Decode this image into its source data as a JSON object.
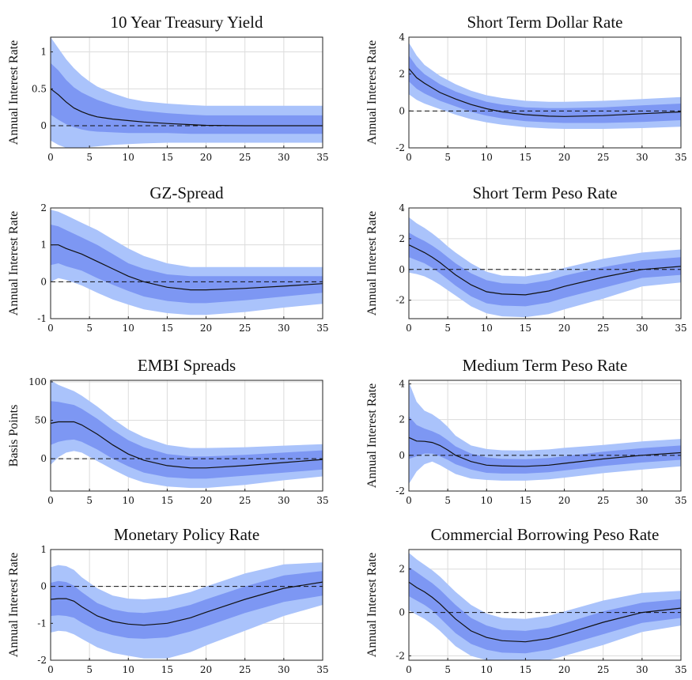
{
  "chart_data": [
    {
      "type": "area",
      "title": "10 Year Treasury Yield",
      "ylabel": "Annual Interest Rate",
      "xlim": [
        0,
        35
      ],
      "ylim": [
        -0.3,
        1.2
      ],
      "xticks": [
        0,
        5,
        10,
        15,
        20,
        25,
        30,
        35
      ],
      "yticks": [
        0,
        0.5,
        1
      ],
      "grid": true,
      "reference_line": 0,
      "x": [
        0,
        1,
        2,
        3,
        4,
        5,
        6,
        8,
        10,
        12,
        15,
        18,
        20,
        25,
        30,
        35
      ],
      "median": [
        0.5,
        0.42,
        0.32,
        0.24,
        0.19,
        0.15,
        0.12,
        0.09,
        0.07,
        0.05,
        0.03,
        0.015,
        0.005,
        0,
        0,
        0
      ],
      "inner_upper": [
        0.85,
        0.75,
        0.62,
        0.52,
        0.45,
        0.4,
        0.35,
        0.28,
        0.23,
        0.2,
        0.17,
        0.15,
        0.14,
        0.14,
        0.14,
        0.14
      ],
      "inner_lower": [
        0.15,
        0.08,
        0.02,
        -0.02,
        -0.05,
        -0.07,
        -0.08,
        -0.09,
        -0.1,
        -0.1,
        -0.1,
        -0.11,
        -0.11,
        -0.11,
        -0.11,
        -0.11
      ],
      "outer_upper": [
        1.2,
        1.05,
        0.9,
        0.78,
        0.68,
        0.6,
        0.53,
        0.44,
        0.37,
        0.33,
        0.3,
        0.28,
        0.27,
        0.27,
        0.27,
        0.27
      ],
      "outer_lower": [
        -0.2,
        -0.26,
        -0.3,
        -0.3,
        -0.3,
        -0.29,
        -0.28,
        -0.26,
        -0.25,
        -0.24,
        -0.23,
        -0.23,
        -0.23,
        -0.23,
        -0.23,
        -0.23
      ]
    },
    {
      "type": "area",
      "title": "Short Term Dollar Rate",
      "ylabel": "Annual Interest Rate",
      "xlim": [
        0,
        35
      ],
      "ylim": [
        -2,
        4
      ],
      "xticks": [
        0,
        5,
        10,
        15,
        20,
        25,
        30,
        35
      ],
      "yticks": [
        -2,
        0,
        2,
        4
      ],
      "grid": true,
      "reference_line": 0,
      "x": [
        0,
        1,
        2,
        4,
        6,
        8,
        10,
        12,
        15,
        18,
        20,
        25,
        30,
        35
      ],
      "median": [
        2.3,
        1.8,
        1.5,
        1.0,
        0.65,
        0.35,
        0.12,
        -0.05,
        -0.2,
        -0.28,
        -0.3,
        -0.25,
        -0.15,
        -0.05
      ],
      "inner_upper": [
        3.0,
        2.4,
        2.0,
        1.45,
        1.05,
        0.75,
        0.5,
        0.35,
        0.2,
        0.15,
        0.15,
        0.2,
        0.3,
        0.4
      ],
      "inner_lower": [
        1.6,
        1.2,
        0.95,
        0.55,
        0.25,
        -0.05,
        -0.25,
        -0.4,
        -0.55,
        -0.62,
        -0.65,
        -0.65,
        -0.6,
        -0.5
      ],
      "outer_upper": [
        3.7,
        3.0,
        2.5,
        1.9,
        1.45,
        1.1,
        0.85,
        0.7,
        0.55,
        0.5,
        0.5,
        0.55,
        0.65,
        0.75
      ],
      "outer_lower": [
        0.9,
        0.6,
        0.4,
        0.1,
        -0.2,
        -0.45,
        -0.62,
        -0.75,
        -0.88,
        -0.95,
        -0.97,
        -0.97,
        -0.93,
        -0.85
      ]
    },
    {
      "type": "area",
      "title": "GZ-Spread",
      "ylabel": "Annual Interest Rate",
      "xlim": [
        0,
        35
      ],
      "ylim": [
        -1,
        2
      ],
      "xticks": [
        0,
        5,
        10,
        15,
        20,
        25,
        30,
        35
      ],
      "yticks": [
        -1,
        0,
        1,
        2
      ],
      "grid": true,
      "reference_line": 0,
      "x": [
        0,
        1,
        2,
        4,
        6,
        8,
        10,
        12,
        15,
        18,
        20,
        25,
        30,
        35
      ],
      "median": [
        1.0,
        1.0,
        0.9,
        0.75,
        0.55,
        0.35,
        0.15,
        0.0,
        -0.15,
        -0.22,
        -0.22,
        -0.18,
        -0.12,
        -0.05
      ],
      "inner_upper": [
        1.55,
        1.5,
        1.4,
        1.2,
        1.0,
        0.75,
        0.5,
        0.35,
        0.2,
        0.15,
        0.15,
        0.15,
        0.15,
        0.15
      ],
      "inner_lower": [
        0.45,
        0.5,
        0.42,
        0.3,
        0.1,
        -0.08,
        -0.25,
        -0.4,
        -0.52,
        -0.58,
        -0.58,
        -0.5,
        -0.4,
        -0.3
      ],
      "outer_upper": [
        1.95,
        1.9,
        1.8,
        1.6,
        1.4,
        1.15,
        0.9,
        0.7,
        0.5,
        0.4,
        0.4,
        0.4,
        0.4,
        0.4
      ],
      "outer_lower": [
        0.0,
        0.1,
        0.05,
        -0.1,
        -0.3,
        -0.48,
        -0.62,
        -0.75,
        -0.85,
        -0.9,
        -0.9,
        -0.82,
        -0.7,
        -0.6
      ]
    },
    {
      "type": "area",
      "title": "Short Term Peso Rate",
      "ylabel": "Annual Interest Rate",
      "xlim": [
        0,
        35
      ],
      "ylim": [
        -3.2,
        4
      ],
      "xticks": [
        0,
        5,
        10,
        15,
        20,
        25,
        30,
        35
      ],
      "yticks": [
        -2,
        0,
        2,
        4
      ],
      "grid": true,
      "reference_line": 0,
      "x": [
        0,
        1,
        2,
        3,
        4,
        5,
        6,
        8,
        10,
        12,
        15,
        18,
        20,
        25,
        30,
        35
      ],
      "median": [
        1.6,
        1.35,
        1.1,
        0.8,
        0.45,
        0.05,
        -0.35,
        -1.0,
        -1.45,
        -1.6,
        -1.65,
        -1.4,
        -1.1,
        -0.5,
        0.0,
        0.2
      ],
      "inner_upper": [
        2.4,
        2.1,
        1.85,
        1.55,
        1.2,
        0.8,
        0.4,
        -0.25,
        -0.7,
        -0.9,
        -0.95,
        -0.7,
        -0.4,
        0.15,
        0.6,
        0.8
      ],
      "inner_lower": [
        0.8,
        0.6,
        0.4,
        0.1,
        -0.25,
        -0.65,
        -1.05,
        -1.75,
        -2.2,
        -2.35,
        -2.4,
        -2.15,
        -1.85,
        -1.2,
        -0.55,
        -0.35
      ],
      "outer_upper": [
        3.4,
        3.0,
        2.7,
        2.35,
        1.95,
        1.5,
        1.1,
        0.4,
        -0.15,
        -0.4,
        -0.45,
        -0.2,
        0.1,
        0.7,
        1.1,
        1.3
      ],
      "outer_lower": [
        -0.2,
        -0.3,
        -0.45,
        -0.7,
        -1.0,
        -1.35,
        -1.7,
        -2.4,
        -2.85,
        -3.05,
        -3.1,
        -2.9,
        -2.6,
        -1.9,
        -1.1,
        -0.85
      ]
    },
    {
      "type": "area",
      "title": "EMBI Spreads",
      "ylabel": "Basis Points",
      "xlim": [
        0,
        35
      ],
      "ylim": [
        -42,
        102
      ],
      "xticks": [
        0,
        5,
        10,
        15,
        20,
        25,
        30,
        35
      ],
      "yticks": [
        0,
        50,
        100
      ],
      "grid": true,
      "reference_line": 0,
      "x": [
        0,
        1,
        2,
        3,
        4,
        6,
        8,
        10,
        12,
        15,
        18,
        20,
        25,
        30,
        35
      ],
      "median": [
        46,
        48,
        48,
        48,
        44,
        32,
        18,
        6,
        -2,
        -9,
        -12,
        -12,
        -9,
        -5,
        -1
      ],
      "inner_upper": [
        75,
        74,
        72,
        70,
        65,
        52,
        37,
        24,
        15,
        6,
        3,
        3,
        5,
        8,
        11
      ],
      "inner_lower": [
        18,
        22,
        24,
        25,
        22,
        12,
        0,
        -10,
        -18,
        -24,
        -26,
        -26,
        -22,
        -18,
        -14
      ],
      "outer_upper": [
        102,
        96,
        92,
        88,
        82,
        68,
        52,
        38,
        28,
        18,
        14,
        14,
        15,
        17,
        19
      ],
      "outer_lower": [
        -8,
        2,
        8,
        10,
        8,
        -3,
        -14,
        -24,
        -31,
        -36,
        -38,
        -38,
        -34,
        -28,
        -23
      ]
    },
    {
      "type": "area",
      "title": "Medium Term Peso Rate",
      "ylabel": "Annual Interest Rate",
      "xlim": [
        0,
        35
      ],
      "ylim": [
        -2,
        4.2
      ],
      "xticks": [
        0,
        5,
        10,
        15,
        20,
        25,
        30,
        35
      ],
      "yticks": [
        -2,
        0,
        2,
        4
      ],
      "grid": true,
      "reference_line": 0,
      "x": [
        0,
        1,
        2,
        3,
        4,
        5,
        6,
        8,
        10,
        12,
        15,
        18,
        20,
        25,
        30,
        35
      ],
      "median": [
        1.0,
        0.8,
        0.78,
        0.72,
        0.55,
        0.3,
        0.0,
        -0.35,
        -0.55,
        -0.6,
        -0.62,
        -0.55,
        -0.45,
        -0.2,
        0.0,
        0.15
      ],
      "inner_upper": [
        2.2,
        1.7,
        1.5,
        1.35,
        1.15,
        0.85,
        0.5,
        0.1,
        -0.12,
        -0.2,
        -0.22,
        -0.15,
        -0.05,
        0.2,
        0.4,
        0.55
      ],
      "inner_lower": [
        -0.2,
        -0.05,
        0.1,
        0.1,
        -0.05,
        -0.25,
        -0.5,
        -0.8,
        -0.98,
        -1.02,
        -1.02,
        -0.95,
        -0.85,
        -0.6,
        -0.4,
        -0.25
      ],
      "outer_upper": [
        4.1,
        3.0,
        2.5,
        2.3,
        2.0,
        1.6,
        1.1,
        0.55,
        0.35,
        0.28,
        0.27,
        0.33,
        0.42,
        0.58,
        0.78,
        0.92
      ],
      "outer_lower": [
        -1.6,
        -0.9,
        -0.5,
        -0.35,
        -0.55,
        -0.8,
        -1.05,
        -1.3,
        -1.38,
        -1.42,
        -1.42,
        -1.35,
        -1.25,
        -1.0,
        -0.8,
        -0.62
      ]
    },
    {
      "type": "area",
      "title": "Monetary Policy Rate",
      "ylabel": "Annual Interest Rate",
      "xlim": [
        0,
        35
      ],
      "ylim": [
        -2,
        1
      ],
      "xticks": [
        0,
        5,
        10,
        15,
        20,
        25,
        30,
        35
      ],
      "yticks": [
        -2,
        -1,
        0,
        1
      ],
      "grid": true,
      "reference_line": 0,
      "x": [
        0,
        1,
        2,
        3,
        4,
        6,
        8,
        10,
        12,
        15,
        18,
        20,
        25,
        30,
        35
      ],
      "median": [
        -0.35,
        -0.33,
        -0.33,
        -0.4,
        -0.55,
        -0.8,
        -0.95,
        -1.02,
        -1.05,
        -1.0,
        -0.85,
        -0.7,
        -0.35,
        -0.05,
        0.12
      ],
      "inner_upper": [
        0.1,
        0.15,
        0.12,
        0.02,
        -0.15,
        -0.45,
        -0.62,
        -0.7,
        -0.72,
        -0.65,
        -0.5,
        -0.35,
        0.0,
        0.3,
        0.42
      ],
      "inner_lower": [
        -0.8,
        -0.78,
        -0.8,
        -0.85,
        -0.98,
        -1.2,
        -1.32,
        -1.4,
        -1.42,
        -1.38,
        -1.22,
        -1.08,
        -0.72,
        -0.42,
        -0.25
      ],
      "outer_upper": [
        0.52,
        0.58,
        0.55,
        0.45,
        0.25,
        -0.05,
        -0.25,
        -0.33,
        -0.35,
        -0.3,
        -0.15,
        0.0,
        0.35,
        0.6,
        0.65
      ],
      "outer_lower": [
        -1.25,
        -1.2,
        -1.22,
        -1.3,
        -1.42,
        -1.65,
        -1.8,
        -1.88,
        -1.95,
        -1.95,
        -1.78,
        -1.6,
        -1.2,
        -0.8,
        -0.5
      ]
    },
    {
      "type": "area",
      "title": "Commercial Borrowing Peso Rate",
      "ylabel": "Annual Interest Rate",
      "xlim": [
        0,
        35
      ],
      "ylim": [
        -2.2,
        2.9
      ],
      "xticks": [
        0,
        5,
        10,
        15,
        20,
        25,
        30,
        35
      ],
      "yticks": [
        -2,
        0,
        2
      ],
      "grid": true,
      "reference_line": 0,
      "x": [
        0,
        1,
        2,
        3,
        4,
        5,
        6,
        8,
        10,
        12,
        15,
        18,
        20,
        25,
        30,
        35
      ],
      "median": [
        1.4,
        1.15,
        0.95,
        0.7,
        0.4,
        0.05,
        -0.3,
        -0.85,
        -1.15,
        -1.3,
        -1.35,
        -1.2,
        -1.0,
        -0.45,
        0.0,
        0.2
      ],
      "inner_upper": [
        2.1,
        1.85,
        1.6,
        1.35,
        1.05,
        0.7,
        0.35,
        -0.25,
        -0.6,
        -0.8,
        -0.85,
        -0.7,
        -0.5,
        0.05,
        0.45,
        0.62
      ],
      "inner_lower": [
        0.75,
        0.55,
        0.35,
        0.1,
        -0.25,
        -0.6,
        -0.95,
        -1.45,
        -1.72,
        -1.85,
        -1.88,
        -1.72,
        -1.52,
        -1.0,
        -0.48,
        -0.25
      ],
      "outer_upper": [
        2.75,
        2.45,
        2.2,
        1.95,
        1.65,
        1.3,
        0.95,
        0.35,
        -0.05,
        -0.25,
        -0.3,
        -0.15,
        0.05,
        0.55,
        0.9,
        1.0
      ],
      "outer_lower": [
        0.1,
        -0.1,
        -0.3,
        -0.55,
        -0.85,
        -1.2,
        -1.55,
        -2.0,
        -2.2,
        -2.3,
        -2.35,
        -2.2,
        -2.0,
        -1.5,
        -0.9,
        -0.6
      ]
    }
  ]
}
